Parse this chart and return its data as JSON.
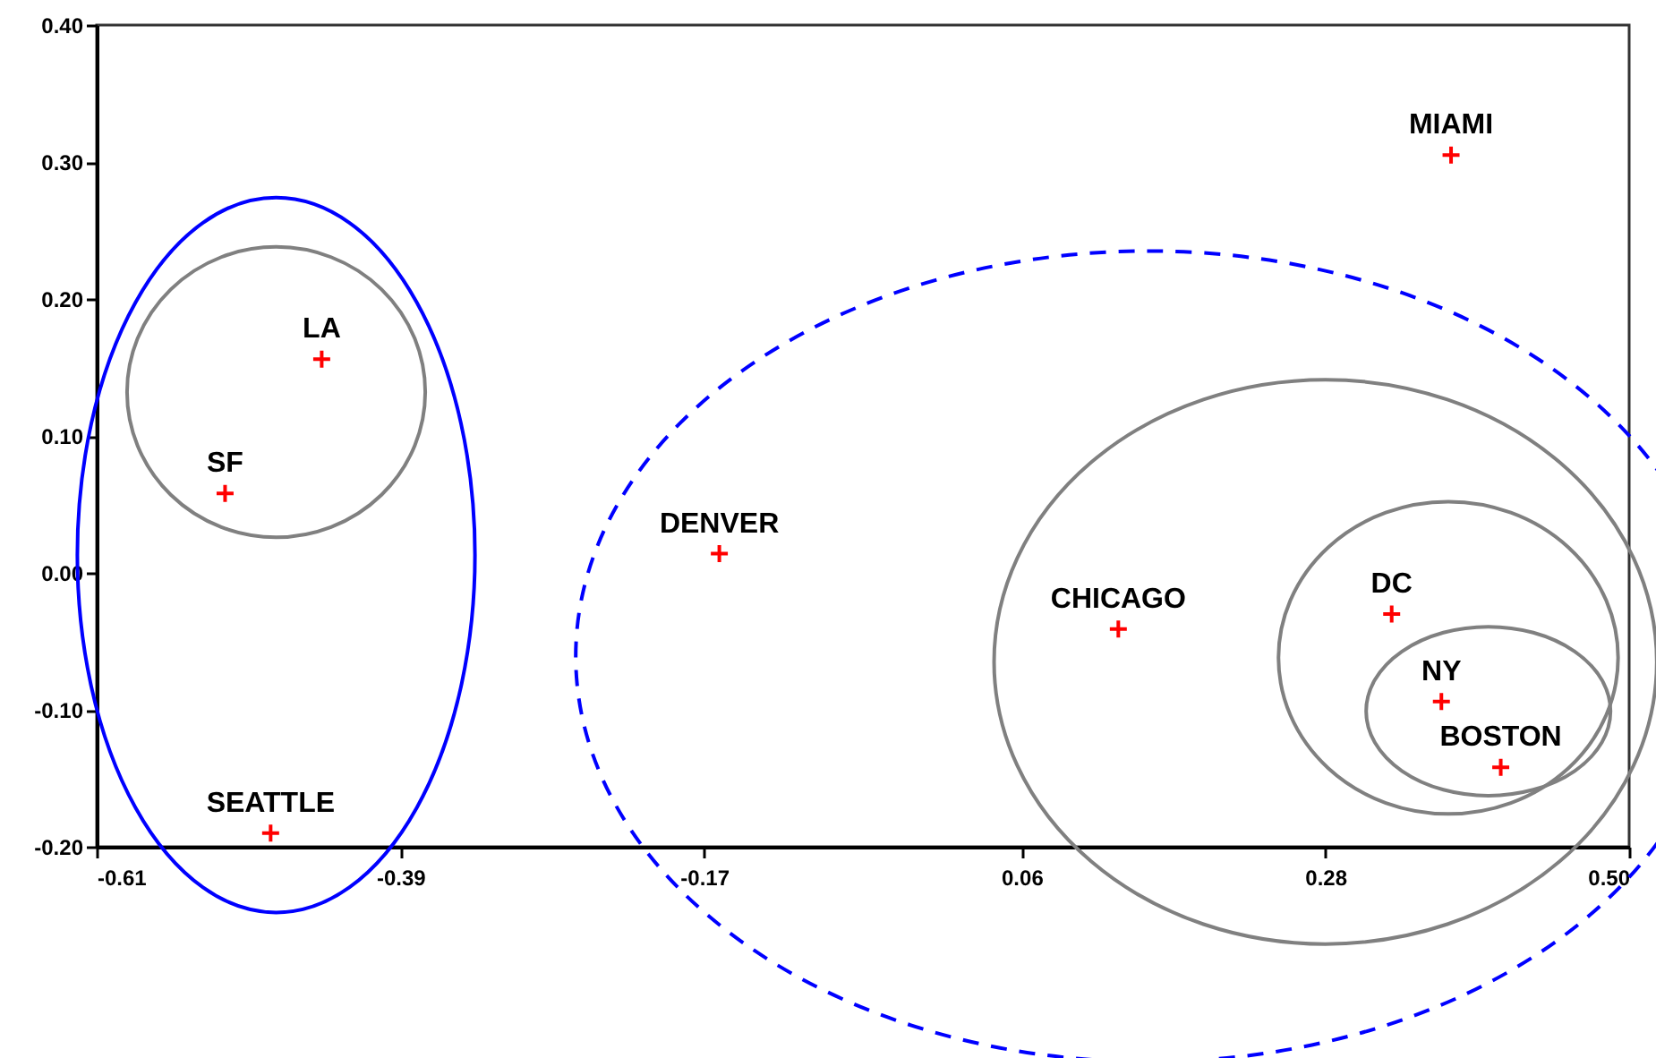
{
  "chart_data": {
    "type": "scatter",
    "x": [
      -0.517,
      -0.447,
      -0.484,
      -0.159,
      0.13,
      0.328,
      0.364,
      0.407,
      0.371
    ],
    "values": [
      0.058,
      0.156,
      -0.19,
      0.014,
      -0.041,
      -0.03,
      -0.094,
      -0.142,
      0.305
    ],
    "color": "#ff0000",
    "marker": "cross",
    "xlim": [
      -0.61,
      0.5
    ],
    "xticks": [
      -0.61,
      -0.39,
      -0.17,
      0.06,
      0.28,
      {
        "value": 0.5,
        "label": "0.50"
      }
    ],
    "ylim": [
      -0.2,
      0.4
    ],
    "yticks": [
      {
        "value": -0.2,
        "label": "-0.20"
      },
      {
        "value": -0.1,
        "label": "-0.10"
      },
      {
        "value": 0,
        "label": "0.00"
      },
      {
        "value": 0.1,
        "label": "0.10"
      },
      {
        "value": 0.2,
        "label": "0.20"
      },
      {
        "value": 0.3,
        "label": "0.30"
      },
      {
        "value": 0.4,
        "label": "0.40"
      }
    ],
    "annotations": [
      {
        "text": "SF",
        "x": -0.517,
        "y": 0.058
      },
      {
        "text": "LA",
        "x": -0.447,
        "y": 0.156
      },
      {
        "text": "SEATTLE",
        "x": -0.484,
        "y": -0.19
      },
      {
        "text": "DENVER",
        "x": -0.159,
        "y": 0.014
      },
      {
        "text": "CHICAGO",
        "x": 0.13,
        "y": -0.041
      },
      {
        "text": "DC",
        "x": 0.328,
        "y": -0.03
      },
      {
        "text": "NY",
        "x": 0.364,
        "y": -0.094
      },
      {
        "text": "BOSTON",
        "x": 0.407,
        "y": -0.142
      },
      {
        "text": "MIAMI",
        "x": 0.371,
        "y": 0.305
      }
    ]
  }
}
